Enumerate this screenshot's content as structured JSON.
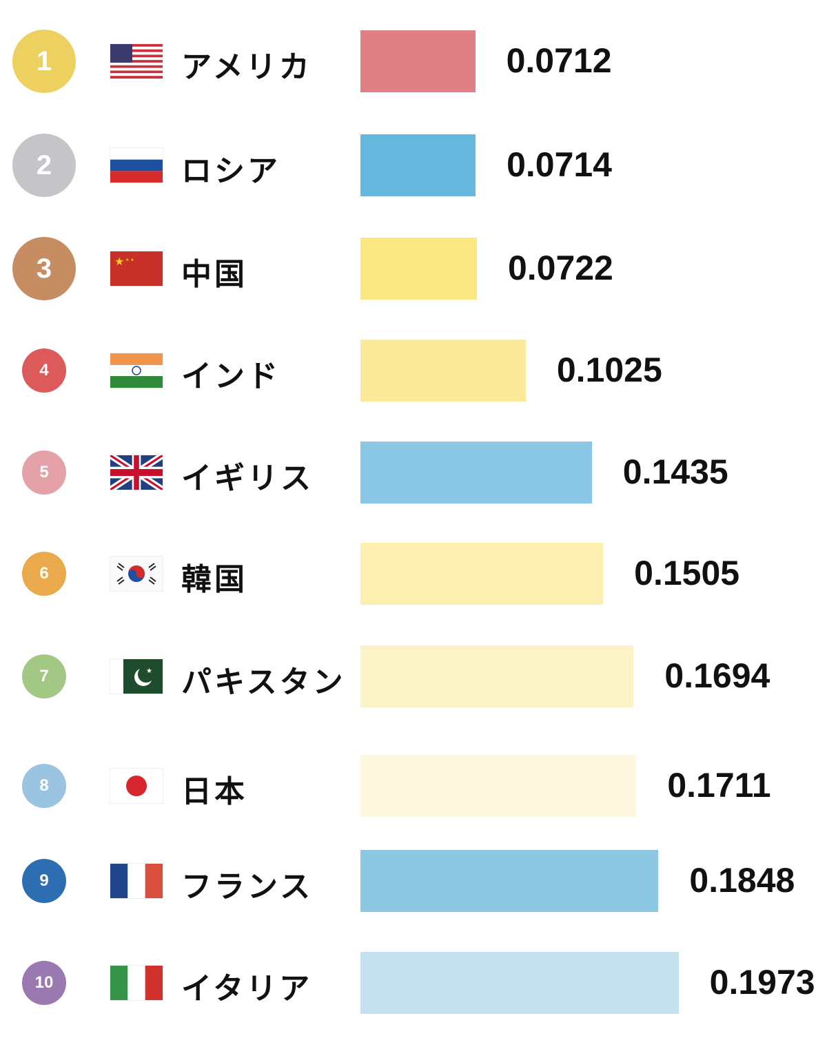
{
  "chart_data": {
    "type": "bar",
    "orientation": "horizontal",
    "categories": [
      "アメリカ",
      "ロシア",
      "中国",
      "インド",
      "イギリス",
      "韓国",
      "パキスタン",
      "日本",
      "フランス",
      "イタリア"
    ],
    "values": [
      0.0712,
      0.0714,
      0.0722,
      0.1025,
      0.1435,
      0.1505,
      0.1694,
      0.1711,
      0.1848,
      0.1973
    ],
    "value_labels": [
      "0.0712",
      "0.0714",
      "0.0722",
      "0.1025",
      "0.1435",
      "0.1505",
      "0.1694",
      "0.1711",
      "0.1848",
      "0.1973"
    ],
    "ranks": [
      "1",
      "2",
      "3",
      "4",
      "5",
      "6",
      "7",
      "8",
      "9",
      "10"
    ],
    "flags": [
      "us",
      "ru",
      "cn",
      "in",
      "gb",
      "kr",
      "pk",
      "jp",
      "fr",
      "it"
    ],
    "bar_colors": [
      "#e07f86",
      "#67b8de",
      "#fbe882",
      "#fce99a",
      "#8ac6e6",
      "#fcefb0",
      "#fcf2c8",
      "#fef7e0",
      "#8ec7e2",
      "#c3e1ef"
    ],
    "rank_colors": [
      "#ecd160",
      "#c5c4c8",
      "#c68d62",
      "#dd5a5a",
      "#e5a1a8",
      "#eaa94a",
      "#a3c784",
      "#9bc4e2",
      "#2d6db2",
      "#9a78b0"
    ],
    "grid": false,
    "legend": "none"
  }
}
